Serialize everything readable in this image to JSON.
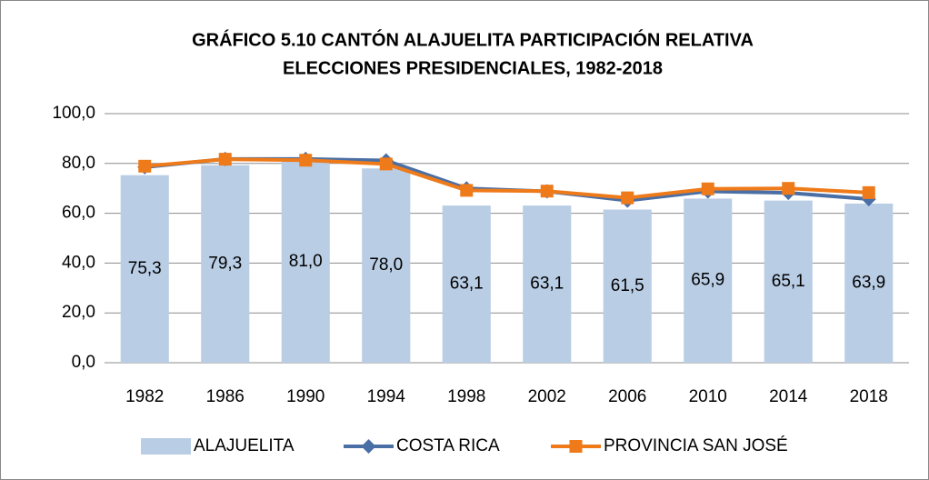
{
  "chart_data": {
    "type": "bar_line",
    "title": [
      "GRÁFICO 5.10 CANTÓN ALAJUELITA PARTICIPACIÓN RELATIVA",
      "ELECCIONES PRESIDENCIALES, 1982-2018"
    ],
    "categories": [
      "1982",
      "1986",
      "1990",
      "1994",
      "1998",
      "2002",
      "2006",
      "2010",
      "2014",
      "2018"
    ],
    "series": [
      {
        "name": "ALAJUELITA",
        "type": "bar",
        "color": "#b9cde5",
        "values": [
          75.3,
          79.3,
          81.0,
          78.0,
          63.1,
          63.1,
          61.5,
          65.9,
          65.1,
          63.9
        ],
        "value_labels": [
          "75,3",
          "79,3",
          "81,0",
          "78,0",
          "63,1",
          "63,1",
          "61,5",
          "65,9",
          "65,1",
          "63,9"
        ]
      },
      {
        "name": "COSTA RICA",
        "type": "line",
        "marker": "diamond",
        "color": "#4a6fa5",
        "values": [
          78.5,
          81.8,
          81.8,
          81.2,
          70.0,
          68.8,
          65.1,
          68.8,
          68.2,
          65.7
        ]
      },
      {
        "name": "PROVINCIA SAN JOSÉ",
        "type": "line",
        "marker": "square",
        "color": "#ee7a1a",
        "values": [
          78.9,
          81.7,
          81.3,
          79.8,
          69.2,
          68.9,
          66.2,
          69.8,
          70.0,
          68.3
        ]
      }
    ],
    "ylim": [
      0,
      100
    ],
    "yticks": [
      {
        "value": 0,
        "label": "0,0"
      },
      {
        "value": 20,
        "label": "20,0"
      },
      {
        "value": 40,
        "label": "40,0"
      },
      {
        "value": 60,
        "label": "60,0"
      },
      {
        "value": 80,
        "label": "80,0"
      },
      {
        "value": 100,
        "label": "100,0"
      }
    ],
    "grid": true,
    "legend": "bottom"
  }
}
